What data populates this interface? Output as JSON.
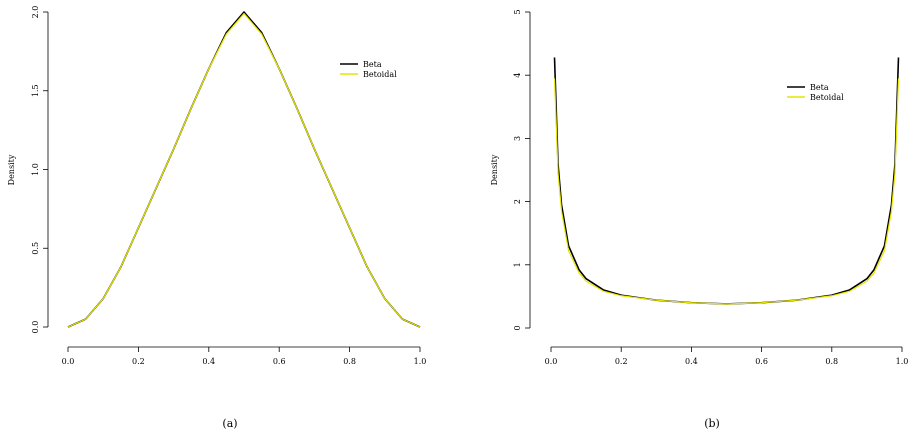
{
  "colors": {
    "beta": "#000000",
    "betoidal": "#e6e600"
  },
  "chart_data": [
    {
      "type": "line",
      "caption": "(a)",
      "title": "",
      "xlabel": "",
      "ylabel": "Density",
      "xlim": [
        0,
        1
      ],
      "ylim": [
        0,
        2
      ],
      "xticks": [
        "0.0",
        "0.2",
        "0.4",
        "0.6",
        "0.8",
        "1.0"
      ],
      "yticks": [
        "0.0",
        "0.5",
        "1.0",
        "1.5",
        "2.0"
      ],
      "legend": {
        "position": "top-right",
        "entries": [
          "Beta",
          "Betoidal"
        ]
      },
      "series": [
        {
          "name": "Beta",
          "color": "#000000",
          "x": [
            0.0,
            0.05,
            0.1,
            0.15,
            0.2,
            0.25,
            0.3,
            0.35,
            0.4,
            0.45,
            0.5,
            0.55,
            0.6,
            0.65,
            0.7,
            0.75,
            0.8,
            0.85,
            0.9,
            0.95,
            1.0
          ],
          "y": [
            0.0,
            0.05,
            0.18,
            0.38,
            0.63,
            0.88,
            1.13,
            1.39,
            1.64,
            1.87,
            2.0,
            1.87,
            1.64,
            1.39,
            1.13,
            0.88,
            0.63,
            0.38,
            0.18,
            0.05,
            0.0
          ]
        },
        {
          "name": "Betoidal",
          "color": "#e6e600",
          "x": [
            0.0,
            0.05,
            0.1,
            0.15,
            0.2,
            0.25,
            0.3,
            0.35,
            0.4,
            0.45,
            0.5,
            0.55,
            0.6,
            0.65,
            0.7,
            0.75,
            0.8,
            0.85,
            0.9,
            0.95,
            1.0
          ],
          "y": [
            0.0,
            0.05,
            0.18,
            0.38,
            0.63,
            0.88,
            1.13,
            1.39,
            1.64,
            1.86,
            1.99,
            1.86,
            1.64,
            1.39,
            1.13,
            0.88,
            0.63,
            0.38,
            0.18,
            0.05,
            0.0
          ]
        }
      ]
    },
    {
      "type": "line",
      "caption": "(b)",
      "title": "",
      "xlabel": "",
      "ylabel": "Density",
      "xlim": [
        0,
        1
      ],
      "ylim": [
        0,
        5
      ],
      "xticks": [
        "0.0",
        "0.2",
        "0.4",
        "0.6",
        "0.8",
        "1.0"
      ],
      "yticks": [
        "0",
        "1",
        "2",
        "3",
        "4",
        "5"
      ],
      "legend": {
        "position": "top-right",
        "entries": [
          "Beta",
          "Betoidal"
        ]
      },
      "series": [
        {
          "name": "Beta",
          "color": "#000000",
          "x": [
            0.01,
            0.02,
            0.03,
            0.05,
            0.08,
            0.1,
            0.15,
            0.2,
            0.3,
            0.4,
            0.5,
            0.6,
            0.7,
            0.8,
            0.85,
            0.9,
            0.92,
            0.95,
            0.97,
            0.98,
            0.99
          ],
          "y": [
            4.28,
            2.6,
            1.95,
            1.3,
            0.92,
            0.78,
            0.6,
            0.52,
            0.44,
            0.4,
            0.38,
            0.4,
            0.44,
            0.52,
            0.6,
            0.78,
            0.92,
            1.3,
            1.95,
            2.6,
            4.28
          ]
        },
        {
          "name": "Betoidal",
          "color": "#e6e600",
          "x": [
            0.01,
            0.02,
            0.03,
            0.05,
            0.08,
            0.1,
            0.15,
            0.2,
            0.3,
            0.4,
            0.5,
            0.6,
            0.7,
            0.8,
            0.85,
            0.9,
            0.92,
            0.95,
            0.97,
            0.98,
            0.99
          ],
          "y": [
            3.95,
            2.45,
            1.85,
            1.22,
            0.87,
            0.74,
            0.58,
            0.51,
            0.44,
            0.4,
            0.38,
            0.4,
            0.44,
            0.51,
            0.58,
            0.74,
            0.87,
            1.22,
            1.85,
            2.45,
            3.95
          ]
        }
      ]
    }
  ]
}
